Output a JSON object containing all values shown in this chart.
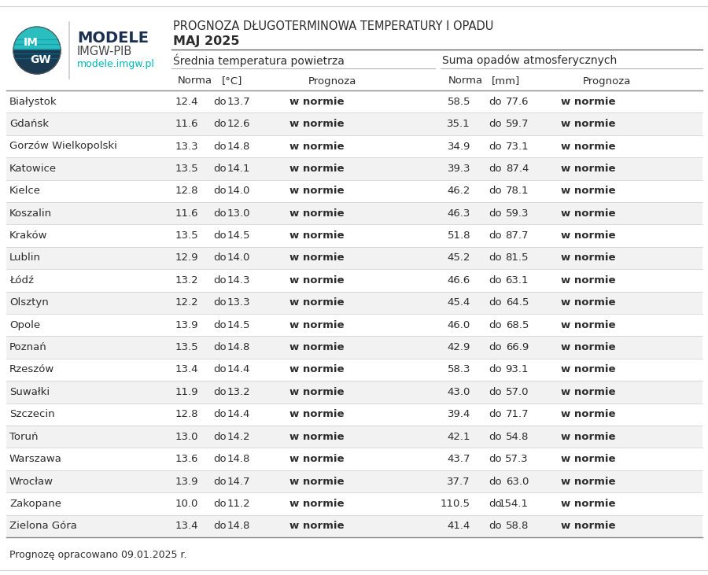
{
  "title_line1": "PROGNOZA DŁUGOTERMINOWA TEMPERATURY I OPADU",
  "title_line2": "MAJ 2025",
  "section1": "Średnia temperatura powietrza",
  "section2": "Suma opadów atmosferycznych",
  "cities": [
    "Białystok",
    "Gdańsk",
    "Gorzów Wielkopolski",
    "Katowice",
    "Kielce",
    "Koszalin",
    "Kraków",
    "Lublin",
    "Łódź",
    "Olsztyn",
    "Opole",
    "Poznań",
    "Rzeszów",
    "Suwałki",
    "Szczecin",
    "Toruń",
    "Warszawa",
    "Wrocław",
    "Zakopane",
    "Zielona Góra"
  ],
  "temp_norma_low": [
    12.4,
    11.6,
    13.3,
    13.5,
    12.8,
    11.6,
    13.5,
    12.9,
    13.2,
    12.2,
    13.9,
    13.5,
    13.4,
    11.9,
    12.8,
    13.0,
    13.6,
    13.9,
    10.0,
    13.4
  ],
  "temp_norma_high": [
    13.7,
    12.6,
    14.8,
    14.1,
    14.0,
    13.0,
    14.5,
    14.0,
    14.3,
    13.3,
    14.5,
    14.8,
    14.4,
    13.2,
    14.4,
    14.2,
    14.8,
    14.7,
    11.2,
    14.8
  ],
  "temp_prognoza": [
    "w normie",
    "w normie",
    "w normie",
    "w normie",
    "w normie",
    "w normie",
    "w normie",
    "w normie",
    "w normie",
    "w normie",
    "w normie",
    "w normie",
    "w normie",
    "w normie",
    "w normie",
    "w normie",
    "w normie",
    "w normie",
    "w normie",
    "w normie"
  ],
  "precip_norma_low": [
    58.5,
    35.1,
    34.9,
    39.3,
    46.2,
    46.3,
    51.8,
    45.2,
    46.6,
    45.4,
    46.0,
    42.9,
    58.3,
    43.0,
    39.4,
    42.1,
    43.7,
    37.7,
    110.5,
    41.4
  ],
  "precip_norma_high": [
    77.6,
    59.7,
    73.1,
    87.4,
    78.1,
    59.3,
    87.7,
    81.5,
    63.1,
    64.5,
    68.5,
    66.9,
    93.1,
    57.0,
    71.7,
    54.8,
    57.3,
    63.0,
    154.1,
    58.8
  ],
  "precip_prognoza": [
    "w normie",
    "w normie",
    "w normie",
    "w normie",
    "w normie",
    "w normie",
    "w normie",
    "w normie",
    "w normie",
    "w normie",
    "w normie",
    "w normie",
    "w normie",
    "w normie",
    "w normie",
    "w normie",
    "w normie",
    "w normie",
    "w normie",
    "w normie"
  ],
  "footer": "Prognozę opracowano 09.01.2025 r.",
  "bg_color": "#ffffff",
  "row_even_color": "#f2f2f2",
  "text_color": "#2c2c2c",
  "modele_color": "#1a3050",
  "teal_color": "#00b8b8",
  "logo_teal": "#2cc4c4",
  "logo_dark": "#1a3a50"
}
